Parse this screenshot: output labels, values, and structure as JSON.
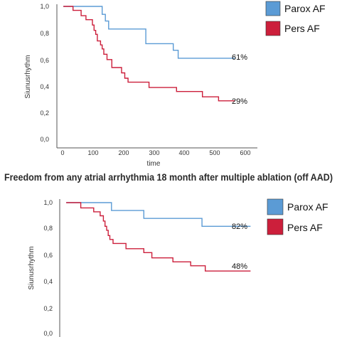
{
  "banner": "Freedom from any atrial arrhythmia 18 month after multiple ablation (off AAD)",
  "colors": {
    "parox": "#5b9bd5",
    "pers": "#cc1f3b",
    "axis": "#555555"
  },
  "chart_data": [
    {
      "type": "line",
      "ylabel": "Siunusrhythm",
      "xlabel": "time",
      "xlim": [
        -20,
        600
      ],
      "ylim": [
        0,
        1
      ],
      "xticks": [
        "0",
        "100",
        "200",
        "300",
        "400",
        "500",
        "600"
      ],
      "yticks": [
        "0,0",
        "0,2",
        "0,4",
        "0,6",
        "0,8",
        "1,0"
      ],
      "legend": [
        "Parox AF",
        "Pers AF"
      ],
      "end_labels": [
        "61%",
        "29%"
      ],
      "series": [
        {
          "name": "Parox AF",
          "x": [
            0,
            75,
            120,
            130,
            140,
            250,
            255,
            330,
            340,
            355,
            530
          ],
          "y": [
            1.0,
            1.0,
            0.94,
            0.89,
            0.83,
            0.83,
            0.72,
            0.72,
            0.67,
            0.61,
            0.61
          ]
        },
        {
          "name": "Pers AF",
          "x": [
            0,
            30,
            55,
            70,
            90,
            95,
            100,
            105,
            115,
            120,
            125,
            135,
            150,
            175,
            180,
            190,
            200,
            240,
            265,
            295,
            350,
            410,
            430,
            480,
            530
          ],
          "y": [
            1.0,
            0.97,
            0.93,
            0.9,
            0.86,
            0.82,
            0.79,
            0.74,
            0.71,
            0.68,
            0.64,
            0.6,
            0.54,
            0.54,
            0.5,
            0.46,
            0.43,
            0.43,
            0.39,
            0.39,
            0.36,
            0.36,
            0.32,
            0.29,
            0.29
          ]
        }
      ]
    },
    {
      "type": "line",
      "ylabel": "Siunusrhythm",
      "ylim": [
        0,
        1
      ],
      "yticks": [
        "0,0",
        "0,2",
        "0,4",
        "0,6",
        "0,8",
        "1,0"
      ],
      "legend": [
        "Parox AF",
        "Pers AF"
      ],
      "end_labels": [
        "82%",
        "48%"
      ],
      "series": [
        {
          "name": "Parox AF",
          "x": [
            0,
            140,
            240,
            420,
            570
          ],
          "y": [
            1.0,
            0.94,
            0.88,
            0.82,
            0.82
          ]
        },
        {
          "name": "Pers AF",
          "x": [
            0,
            45,
            85,
            105,
            115,
            120,
            125,
            130,
            135,
            145,
            150,
            185,
            240,
            265,
            295,
            330,
            385,
            430,
            530,
            570
          ],
          "y": [
            1.0,
            0.96,
            0.93,
            0.9,
            0.86,
            0.82,
            0.79,
            0.75,
            0.72,
            0.69,
            0.69,
            0.65,
            0.62,
            0.58,
            0.58,
            0.55,
            0.52,
            0.48,
            0.48,
            0.48
          ]
        }
      ]
    }
  ]
}
